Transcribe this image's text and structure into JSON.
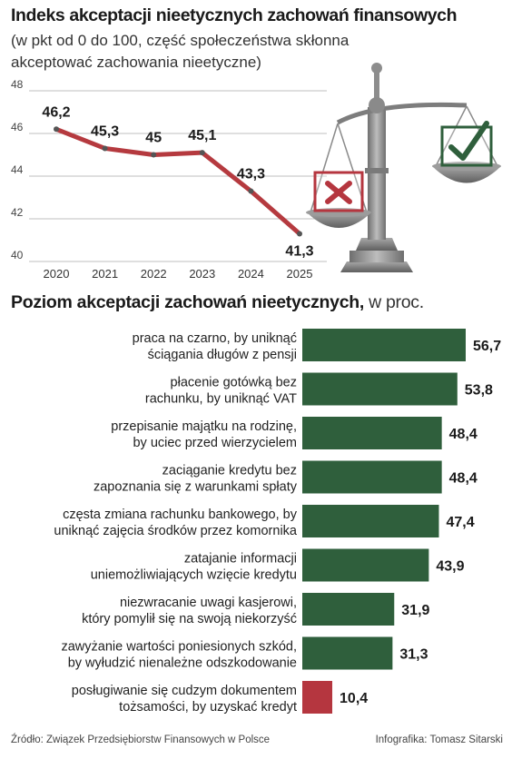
{
  "titles": {
    "top_title": "Indeks akceptacji nieetycznych zachowań finansowych",
    "top_subtitle": "(w pkt od 0 do 100, część społeczeństwa skłonna akceptować zachowania nieetyczne)",
    "bottom_title_bold": "Poziom akceptacji zachowań nieetycznych,",
    "bottom_title_rest": " w proc."
  },
  "footer": {
    "source": "Źródło: Związek Przedsiębiorstw Finansowych w Polsce",
    "credit": "Infografika: Tomasz Sitarski"
  },
  "colors": {
    "line": "#b53a3f",
    "bar": "#2f5f3c",
    "bar_highlight": "#b5363f",
    "grid": "#bfbfbf",
    "scale_metal": "#8a8a8a"
  },
  "icons": {
    "scale": "balance-scale-icon",
    "cross": "cross-box-icon",
    "check": "check-box-icon"
  },
  "chart_data": [
    {
      "type": "line",
      "title": "Indeks akceptacji nieetycznych zachowań finansowych",
      "subtitle": "(w pkt od 0 do 100, część społeczeństwa skłonna akceptować zachowania nieetyczne)",
      "x": [
        "2020",
        "2021",
        "2022",
        "2023",
        "2024",
        "2025"
      ],
      "values": [
        46.2,
        45.3,
        45,
        45.1,
        43.3,
        41.3
      ],
      "labels": [
        "46,2",
        "45,3",
        "45",
        "45,1",
        "43,3",
        "41,3"
      ],
      "yticks": [
        "40",
        "42",
        "44",
        "46",
        "48"
      ],
      "ylim": [
        40,
        48
      ],
      "grid": true
    },
    {
      "type": "bar",
      "orientation": "horizontal",
      "title": "Poziom akceptacji zachowań nieetycznych, w proc.",
      "categories": [
        [
          "praca na czarno, by uniknąć",
          "ściągania długów z pensji"
        ],
        [
          "płacenie gotówką bez",
          "rachunku, by uniknąć VAT"
        ],
        [
          "przepisanie majątku na rodzinę,",
          "by uciec przed wierzycielem"
        ],
        [
          "zaciąganie kredytu bez",
          "zapoznania się z warunkami spłaty"
        ],
        [
          "częsta zmiana rachunku bankowego, by",
          "uniknąć zajęcia środków przez komornika"
        ],
        [
          "zatajanie informacji",
          "uniemożliwiających wzięcie kredytu"
        ],
        [
          "niezwracanie uwagi kasjerowi,",
          "który pomylił się na swoją niekorzyść"
        ],
        [
          "zawyżanie wartości poniesionych szkód,",
          "by wyłudzić nienależne odszkodowanie"
        ],
        [
          "posługiwanie się cudzym dokumentem",
          "tożsamości, by uzyskać kredyt"
        ]
      ],
      "values": [
        56.7,
        53.8,
        48.4,
        48.4,
        47.4,
        43.9,
        31.9,
        31.3,
        10.4
      ],
      "labels": [
        "56,7",
        "53,8",
        "48,4",
        "48,4",
        "47,4",
        "43,9",
        "31,9",
        "31,3",
        "10,4"
      ],
      "highlight_index": 8
    }
  ]
}
